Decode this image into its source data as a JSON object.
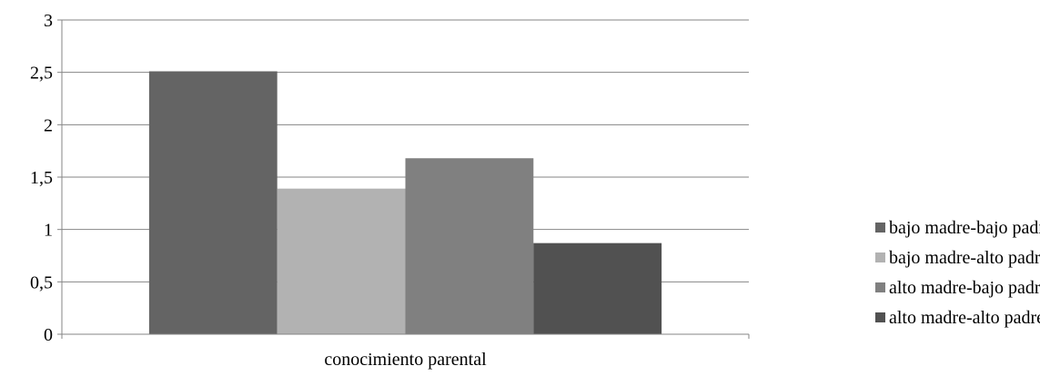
{
  "chart_data": {
    "type": "bar",
    "categories": [
      "conocimiento parental"
    ],
    "series": [
      {
        "name": "bajo madre-bajo padre",
        "values": [
          2.51
        ],
        "color": "#646464"
      },
      {
        "name": "bajo madre-alto padre",
        "values": [
          1.39
        ],
        "color": "#b2b2b2"
      },
      {
        "name": "alto madre-bajo padre",
        "values": [
          1.68
        ],
        "color": "#808080"
      },
      {
        "name": "alto madre-alto padre",
        "values": [
          0.87
        ],
        "color": "#515151"
      }
    ],
    "yticks": [
      "0",
      "0,5",
      "1",
      "1,5",
      "2",
      "2,5",
      "3"
    ],
    "ylim": [
      0,
      3
    ],
    "grid": true,
    "legend_position": "right",
    "title": "",
    "xlabel": "",
    "ylabel": ""
  }
}
